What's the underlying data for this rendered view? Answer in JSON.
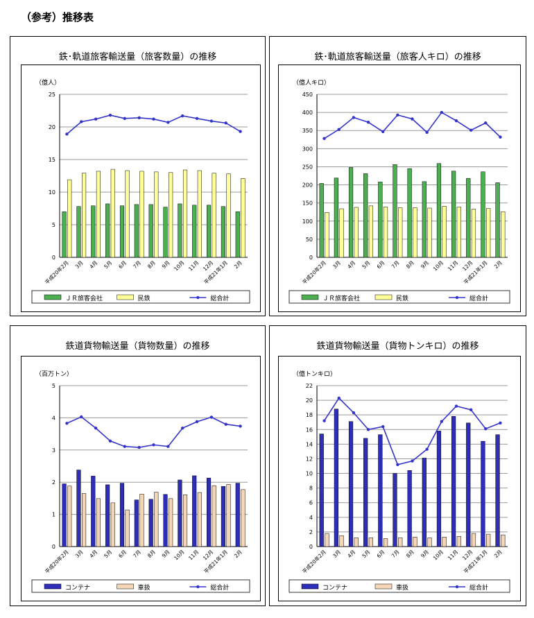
{
  "page": {
    "title": "（参考）推移表"
  },
  "charts": [
    {
      "panel_title": "鉄･軌道旅客輸送量（旅客数量）の推移",
      "chart_data": {
        "type": "bar",
        "unit_label": "（億人）",
        "categories": [
          "平成20年2月",
          "3月",
          "4月",
          "5月",
          "6月",
          "7月",
          "8月",
          "9月",
          "10月",
          "11月",
          "12月",
          "平成21年1月",
          "2月"
        ],
        "ylim": [
          0,
          25
        ],
        "yticks": [
          0,
          5,
          10,
          15,
          20,
          25
        ],
        "series": [
          {
            "name": "ＪＲ旅客会社",
            "kind": "bar",
            "color": "#4caf50",
            "values": [
              7.0,
              7.8,
              7.9,
              8.2,
              7.9,
              8.1,
              8.1,
              7.7,
              8.2,
              8.0,
              8.0,
              7.8,
              7.0
            ]
          },
          {
            "name": "民鉄",
            "kind": "bar",
            "color": "#ffff99",
            "values": [
              11.9,
              12.9,
              13.2,
              13.5,
              13.3,
              13.2,
              13.1,
              13.0,
              13.4,
              13.3,
              12.9,
              12.8,
              12.1
            ]
          },
          {
            "name": "総合計",
            "kind": "line",
            "color": "#3333cc",
            "values": [
              18.9,
              20.8,
              21.2,
              21.8,
              21.3,
              21.4,
              21.2,
              20.7,
              21.7,
              21.3,
              20.9,
              20.6,
              19.3
            ]
          }
        ]
      }
    },
    {
      "panel_title": "鉄･軌道旅客輸送量（旅客人キロ）の推移",
      "chart_data": {
        "type": "bar",
        "unit_label": "（億人キロ）",
        "categories": [
          "平成20年2月",
          "3月",
          "4月",
          "5月",
          "6月",
          "7月",
          "8月",
          "9月",
          "10月",
          "11月",
          "12月",
          "平成21年1月",
          "2月"
        ],
        "ylim": [
          0,
          450
        ],
        "yticks": [
          0,
          50,
          100,
          150,
          200,
          250,
          300,
          350,
          400,
          450
        ],
        "series": [
          {
            "name": "ＪＲ旅客会社",
            "kind": "bar",
            "color": "#4caf50",
            "values": [
              204,
              219,
              248,
              231,
              208,
              256,
              245,
              209,
              259,
              238,
              218,
              236,
              206
            ]
          },
          {
            "name": "民鉄",
            "kind": "bar",
            "color": "#ffff99",
            "values": [
              124,
              134,
              138,
              142,
              139,
              137,
              137,
              136,
              141,
              139,
              133,
              135,
              126
            ]
          },
          {
            "name": "総合計",
            "kind": "line",
            "color": "#3333cc",
            "values": [
              328,
              353,
              386,
              373,
              347,
              393,
              382,
              345,
              400,
              377,
              351,
              371,
              332
            ]
          }
        ]
      }
    },
    {
      "panel_title": "鉄道貨物輸送量（貨物数量）の推移",
      "chart_data": {
        "type": "bar",
        "unit_label": "（百万トン）",
        "categories": [
          "平成20年2月",
          "3月",
          "4月",
          "5月",
          "6月",
          "7月",
          "8月",
          "9月",
          "10月",
          "11月",
          "12月",
          "平成21年1月",
          "2月"
        ],
        "ylim": [
          0,
          5
        ],
        "yticks": [
          0,
          1,
          2,
          3,
          4,
          5
        ],
        "series": [
          {
            "name": "コンテナ",
            "kind": "bar",
            "color": "#2e2eb8",
            "values": [
              1.95,
              2.38,
              2.19,
              1.92,
              1.97,
              1.45,
              1.47,
              1.62,
              2.07,
              2.2,
              2.13,
              1.87,
              1.97
            ]
          },
          {
            "name": "車扱",
            "kind": "bar",
            "color": "#f5d5b8",
            "values": [
              1.88,
              1.65,
              1.49,
              1.36,
              1.14,
              1.63,
              1.69,
              1.49,
              1.61,
              1.68,
              1.89,
              1.93,
              1.77
            ]
          },
          {
            "name": "総合計",
            "kind": "line",
            "color": "#3333cc",
            "values": [
              3.83,
              4.03,
              3.68,
              3.28,
              3.11,
              3.08,
              3.16,
              3.11,
              3.68,
              3.88,
              4.02,
              3.8,
              3.74
            ]
          }
        ]
      }
    },
    {
      "panel_title": "鉄道貨物輸送量（貨物トンキロ）の推移",
      "chart_data": {
        "type": "bar",
        "unit_label": "（億トンキロ）",
        "categories": [
          "平成20年2月",
          "3月",
          "4月",
          "5月",
          "6月",
          "7月",
          "8月",
          "9月",
          "10月",
          "11月",
          "12月",
          "平成21年1月",
          "2月"
        ],
        "ylim": [
          0,
          22
        ],
        "yticks": [
          0,
          2,
          4,
          6,
          8,
          10,
          12,
          14,
          16,
          18,
          20,
          22
        ],
        "series": [
          {
            "name": "コンテナ",
            "kind": "bar",
            "color": "#2e2eb8",
            "values": [
              15.4,
              18.8,
              17.1,
              14.8,
              15.3,
              10.0,
              10.4,
              12.1,
              15.8,
              17.8,
              16.9,
              14.4,
              15.3
            ]
          },
          {
            "name": "車扱",
            "kind": "bar",
            "color": "#f5d5b8",
            "values": [
              1.8,
              1.5,
              1.2,
              1.2,
              1.1,
              1.2,
              1.3,
              1.2,
              1.3,
              1.4,
              1.8,
              1.7,
              1.6
            ]
          },
          {
            "name": "総合計",
            "kind": "line",
            "color": "#3333cc",
            "values": [
              17.2,
              20.3,
              18.3,
              16.0,
              16.4,
              11.2,
              11.7,
              13.3,
              17.1,
              19.2,
              18.7,
              16.1,
              16.9
            ]
          }
        ]
      }
    }
  ]
}
